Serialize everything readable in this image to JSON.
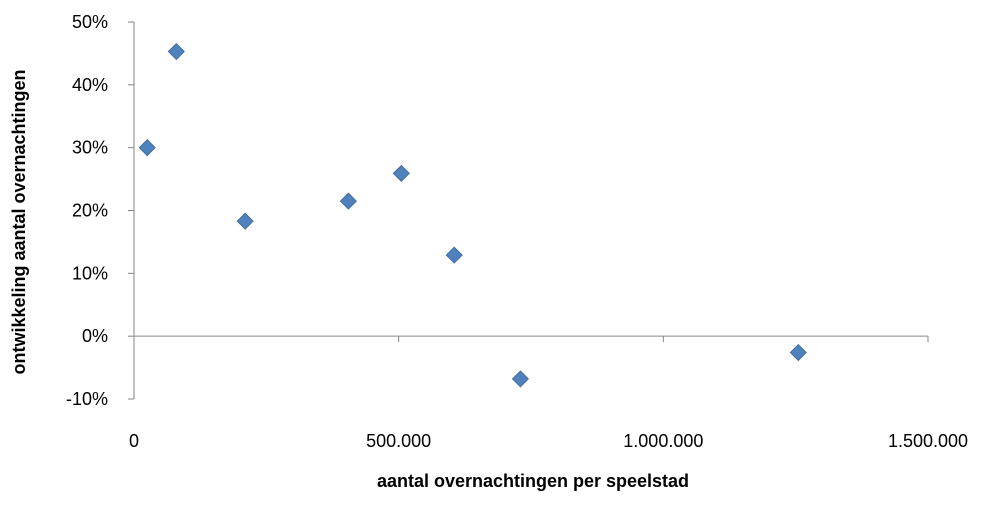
{
  "chart_data": {
    "type": "scatter",
    "xlabel": "aantal overnachtingen per speelstad",
    "ylabel": "ontwikkeling aantal overnachtingen",
    "xlim": [
      0,
      1500000
    ],
    "ylim": [
      -0.1,
      0.5
    ],
    "x_ticks": [
      {
        "value": 0,
        "label": "0"
      },
      {
        "value": 500000,
        "label": "500.000"
      },
      {
        "value": 1000000,
        "label": "1.000.000"
      },
      {
        "value": 1500000,
        "label": "1.500.000"
      }
    ],
    "y_ticks": [
      {
        "value": 0.5,
        "label": "50%"
      },
      {
        "value": 0.4,
        "label": "40%"
      },
      {
        "value": 0.3,
        "label": "30%"
      },
      {
        "value": 0.2,
        "label": "20%"
      },
      {
        "value": 0.1,
        "label": "10%"
      },
      {
        "value": 0.0,
        "label": "0%"
      },
      {
        "value": -0.1,
        "label": "-10%"
      }
    ],
    "grid": false,
    "legend": "none",
    "marker": "diamond",
    "marker_color": "#4F81BD",
    "axis_color": "#868686",
    "points": [
      {
        "x": 25000,
        "y": 0.3
      },
      {
        "x": 80000,
        "y": 0.453
      },
      {
        "x": 210000,
        "y": 0.183
      },
      {
        "x": 405000,
        "y": 0.215
      },
      {
        "x": 505000,
        "y": 0.259
      },
      {
        "x": 605000,
        "y": 0.129
      },
      {
        "x": 730000,
        "y": -0.068
      },
      {
        "x": 1255000,
        "y": -0.026
      }
    ]
  }
}
